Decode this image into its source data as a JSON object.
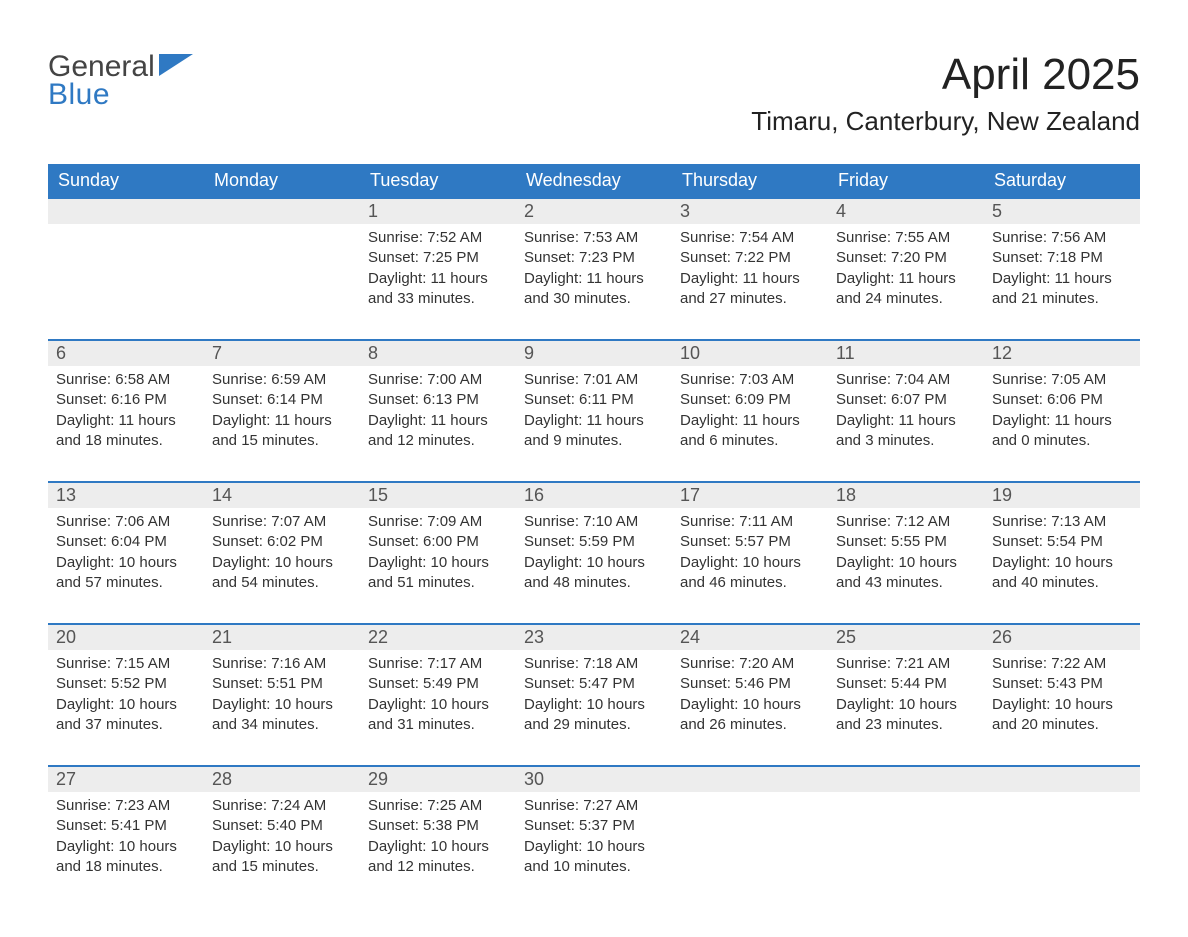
{
  "logo": {
    "word1": "General",
    "word2": "Blue",
    "accent_color": "#2f79c3"
  },
  "title": "April 2025",
  "location": "Timaru, Canterbury, New Zealand",
  "colors": {
    "header_bg": "#2f79c3",
    "header_text": "#ffffff",
    "row_divider": "#2f79c3",
    "daynum_bg": "#ededed",
    "body_text": "#333333",
    "page_bg": "#ffffff"
  },
  "weekdays": [
    "Sunday",
    "Monday",
    "Tuesday",
    "Wednesday",
    "Thursday",
    "Friday",
    "Saturday"
  ],
  "weeks": [
    [
      null,
      null,
      {
        "n": "1",
        "sunrise": "7:52 AM",
        "sunset": "7:25 PM",
        "daylight": "11 hours and 33 minutes."
      },
      {
        "n": "2",
        "sunrise": "7:53 AM",
        "sunset": "7:23 PM",
        "daylight": "11 hours and 30 minutes."
      },
      {
        "n": "3",
        "sunrise": "7:54 AM",
        "sunset": "7:22 PM",
        "daylight": "11 hours and 27 minutes."
      },
      {
        "n": "4",
        "sunrise": "7:55 AM",
        "sunset": "7:20 PM",
        "daylight": "11 hours and 24 minutes."
      },
      {
        "n": "5",
        "sunrise": "7:56 AM",
        "sunset": "7:18 PM",
        "daylight": "11 hours and 21 minutes."
      }
    ],
    [
      {
        "n": "6",
        "sunrise": "6:58 AM",
        "sunset": "6:16 PM",
        "daylight": "11 hours and 18 minutes."
      },
      {
        "n": "7",
        "sunrise": "6:59 AM",
        "sunset": "6:14 PM",
        "daylight": "11 hours and 15 minutes."
      },
      {
        "n": "8",
        "sunrise": "7:00 AM",
        "sunset": "6:13 PM",
        "daylight": "11 hours and 12 minutes."
      },
      {
        "n": "9",
        "sunrise": "7:01 AM",
        "sunset": "6:11 PM",
        "daylight": "11 hours and 9 minutes."
      },
      {
        "n": "10",
        "sunrise": "7:03 AM",
        "sunset": "6:09 PM",
        "daylight": "11 hours and 6 minutes."
      },
      {
        "n": "11",
        "sunrise": "7:04 AM",
        "sunset": "6:07 PM",
        "daylight": "11 hours and 3 minutes."
      },
      {
        "n": "12",
        "sunrise": "7:05 AM",
        "sunset": "6:06 PM",
        "daylight": "11 hours and 0 minutes."
      }
    ],
    [
      {
        "n": "13",
        "sunrise": "7:06 AM",
        "sunset": "6:04 PM",
        "daylight": "10 hours and 57 minutes."
      },
      {
        "n": "14",
        "sunrise": "7:07 AM",
        "sunset": "6:02 PM",
        "daylight": "10 hours and 54 minutes."
      },
      {
        "n": "15",
        "sunrise": "7:09 AM",
        "sunset": "6:00 PM",
        "daylight": "10 hours and 51 minutes."
      },
      {
        "n": "16",
        "sunrise": "7:10 AM",
        "sunset": "5:59 PM",
        "daylight": "10 hours and 48 minutes."
      },
      {
        "n": "17",
        "sunrise": "7:11 AM",
        "sunset": "5:57 PM",
        "daylight": "10 hours and 46 minutes."
      },
      {
        "n": "18",
        "sunrise": "7:12 AM",
        "sunset": "5:55 PM",
        "daylight": "10 hours and 43 minutes."
      },
      {
        "n": "19",
        "sunrise": "7:13 AM",
        "sunset": "5:54 PM",
        "daylight": "10 hours and 40 minutes."
      }
    ],
    [
      {
        "n": "20",
        "sunrise": "7:15 AM",
        "sunset": "5:52 PM",
        "daylight": "10 hours and 37 minutes."
      },
      {
        "n": "21",
        "sunrise": "7:16 AM",
        "sunset": "5:51 PM",
        "daylight": "10 hours and 34 minutes."
      },
      {
        "n": "22",
        "sunrise": "7:17 AM",
        "sunset": "5:49 PM",
        "daylight": "10 hours and 31 minutes."
      },
      {
        "n": "23",
        "sunrise": "7:18 AM",
        "sunset": "5:47 PM",
        "daylight": "10 hours and 29 minutes."
      },
      {
        "n": "24",
        "sunrise": "7:20 AM",
        "sunset": "5:46 PM",
        "daylight": "10 hours and 26 minutes."
      },
      {
        "n": "25",
        "sunrise": "7:21 AM",
        "sunset": "5:44 PM",
        "daylight": "10 hours and 23 minutes."
      },
      {
        "n": "26",
        "sunrise": "7:22 AM",
        "sunset": "5:43 PM",
        "daylight": "10 hours and 20 minutes."
      }
    ],
    [
      {
        "n": "27",
        "sunrise": "7:23 AM",
        "sunset": "5:41 PM",
        "daylight": "10 hours and 18 minutes."
      },
      {
        "n": "28",
        "sunrise": "7:24 AM",
        "sunset": "5:40 PM",
        "daylight": "10 hours and 15 minutes."
      },
      {
        "n": "29",
        "sunrise": "7:25 AM",
        "sunset": "5:38 PM",
        "daylight": "10 hours and 12 minutes."
      },
      {
        "n": "30",
        "sunrise": "7:27 AM",
        "sunset": "5:37 PM",
        "daylight": "10 hours and 10 minutes."
      },
      null,
      null,
      null
    ]
  ],
  "labels": {
    "sunrise": "Sunrise:",
    "sunset": "Sunset:",
    "daylight": "Daylight:"
  }
}
